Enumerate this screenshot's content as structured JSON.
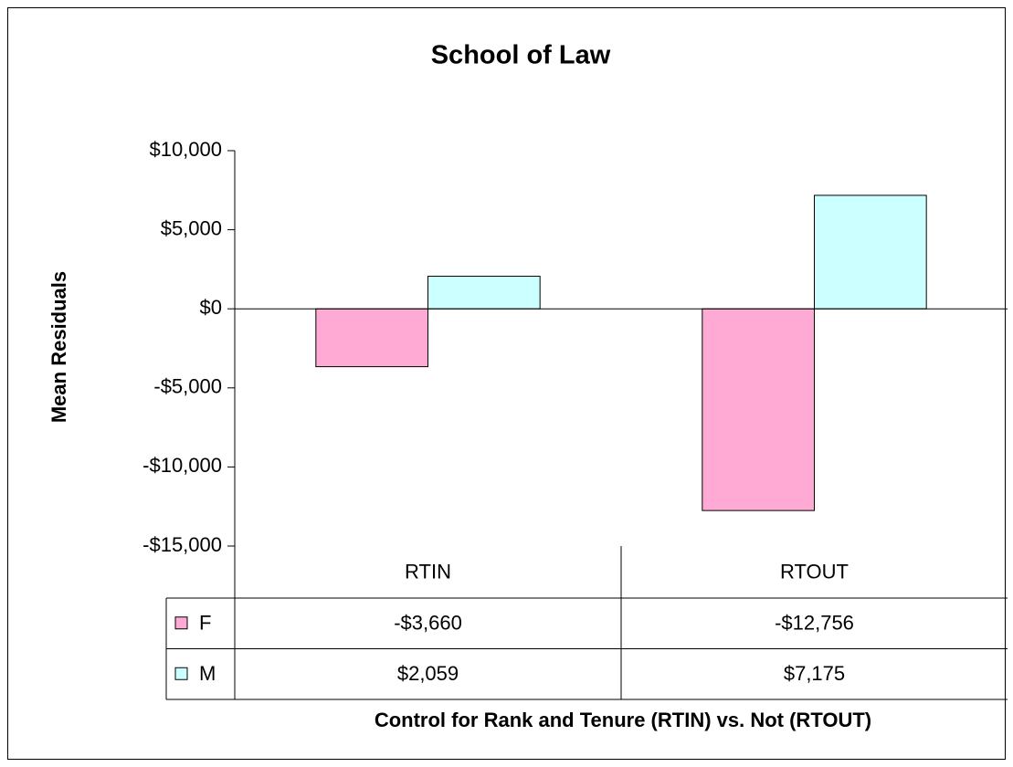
{
  "chart_data": {
    "type": "bar",
    "title": "School of Law",
    "y_label": "Mean Residuals",
    "x_label": "Control for Rank and Tenure (RTIN) vs. Not (RTOUT)",
    "categories": [
      "RTIN",
      "RTOUT"
    ],
    "series": [
      {
        "name": "F",
        "color": "#ffaad5",
        "values": [
          -3660,
          -12756
        ],
        "value_labels": [
          "-$3,660",
          "-$12,756"
        ]
      },
      {
        "name": "M",
        "color": "#ccffff",
        "values": [
          2059,
          7175
        ],
        "value_labels": [
          "$2,059",
          "$7,175"
        ]
      }
    ],
    "ylim": [
      -15000,
      10000
    ],
    "yticks": [
      {
        "value": -15000,
        "label": "-$15,000"
      },
      {
        "value": -10000,
        "label": "-$10,000"
      },
      {
        "value": -5000,
        "label": "-$5,000"
      },
      {
        "value": 0,
        "label": "$0"
      },
      {
        "value": 5000,
        "label": "$5,000"
      },
      {
        "value": 10000,
        "label": "$10,000"
      }
    ],
    "grid": false
  }
}
